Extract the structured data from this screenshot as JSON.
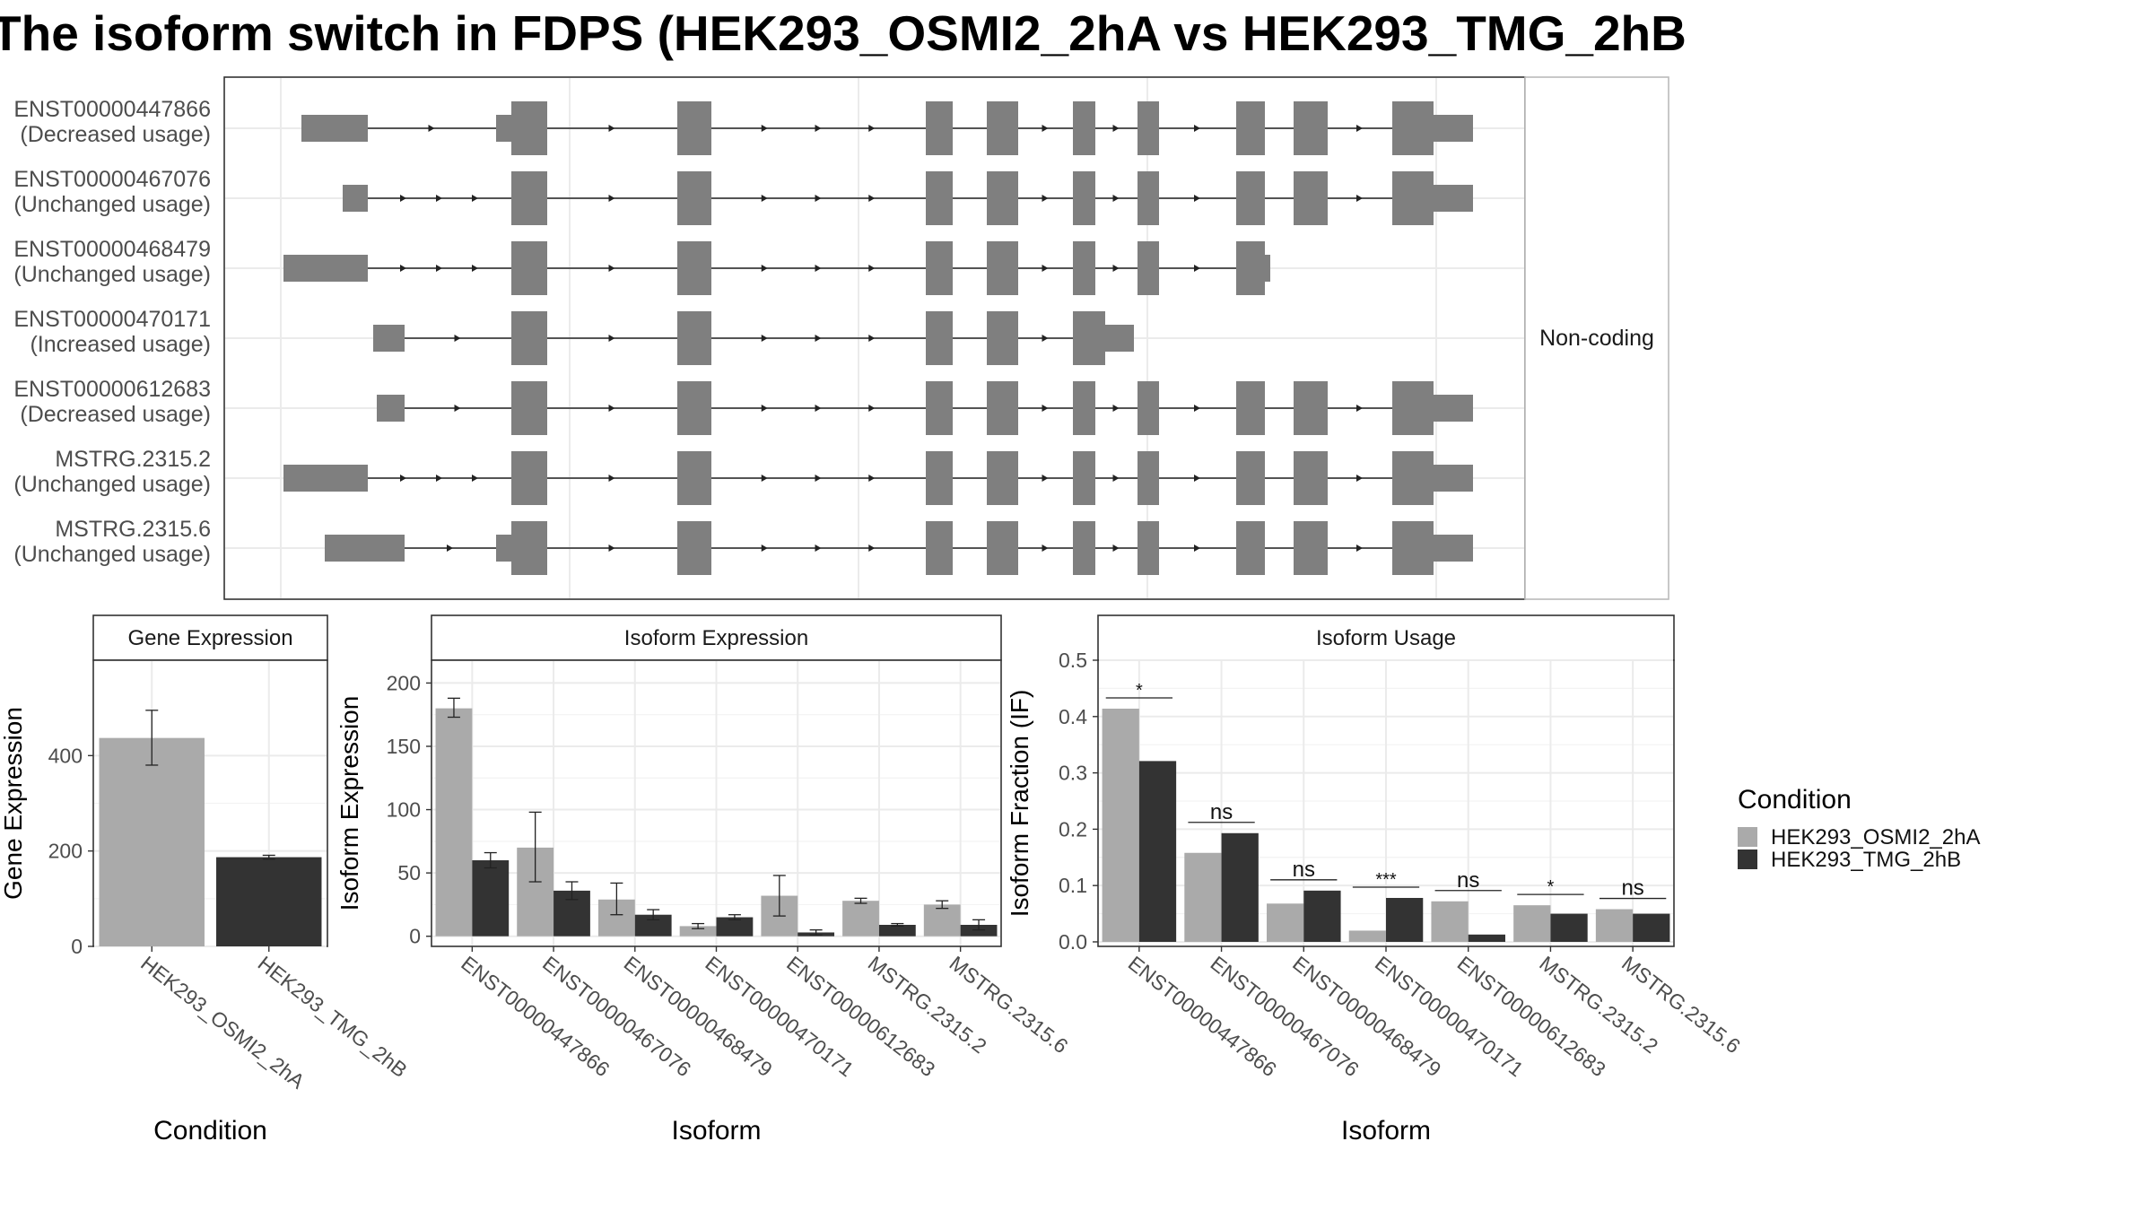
{
  "title": "The isoform switch in FDPS (HEK293_OSMI2_2hA vs HEK293_TMG_2hB",
  "colors": {
    "cond_a": "#aaaaaa",
    "cond_b": "#333333",
    "exon": "#7f7f7f",
    "grid": "#ebebeb"
  },
  "chart_data": [
    {
      "type": "gene-structure",
      "panel_label": "Non-coding",
      "transcripts": [
        {
          "id": "ENST00000447866",
          "usage": "(Decreased usage)"
        },
        {
          "id": "ENST00000467076",
          "usage": "(Unchanged usage)"
        },
        {
          "id": "ENST00000468479",
          "usage": "(Unchanged usage)"
        },
        {
          "id": "ENST00000470171",
          "usage": "(Increased usage)"
        },
        {
          "id": "ENST00000612683",
          "usage": "(Decreased usage)"
        },
        {
          "id": "MSTRG.2315.2",
          "usage": "(Unchanged usage)"
        },
        {
          "id": "MSTRG.2315.6",
          "usage": "(Unchanged usage)"
        }
      ]
    },
    {
      "type": "bar",
      "title": "Gene Expression",
      "xlabel": "Condition",
      "ylabel": "Gene Expression",
      "categories": [
        "HEK293_OSMI2_2hA",
        "HEK293_TMG_2hB"
      ],
      "values": [
        437,
        187
      ],
      "errors": [
        [
          380,
          495
        ],
        [
          183,
          191
        ]
      ],
      "yticks": [
        0,
        200,
        400
      ],
      "ylim": [
        0,
        600
      ]
    },
    {
      "type": "bar",
      "title": "Isoform Expression",
      "xlabel": "Isoform",
      "ylabel": "Isoform Expression",
      "categories": [
        "ENST00000447866",
        "ENST00000467076",
        "ENST00000468479",
        "ENST00000470171",
        "ENST00000612683",
        "MSTRG.2315.2",
        "MSTRG.2315.6"
      ],
      "series": [
        {
          "name": "HEK293_OSMI2_2hA",
          "values": [
            180,
            70,
            29,
            8,
            32,
            28,
            25
          ],
          "errors": [
            [
              173,
              188
            ],
            [
              43,
              98
            ],
            [
              17,
              42
            ],
            [
              6,
              10
            ],
            [
              16,
              48
            ],
            [
              26,
              30
            ],
            [
              22,
              28
            ]
          ]
        },
        {
          "name": "HEK293_TMG_2hB",
          "values": [
            60,
            36,
            17,
            15,
            3,
            9,
            9
          ],
          "errors": [
            [
              54,
              66
            ],
            [
              29,
              43
            ],
            [
              13,
              21
            ],
            [
              13,
              17
            ],
            [
              1,
              5
            ],
            [
              8,
              10
            ],
            [
              5,
              13
            ]
          ]
        }
      ],
      "yticks": [
        0,
        50,
        100,
        150,
        200
      ],
      "ylim": [
        -8,
        218
      ]
    },
    {
      "type": "bar",
      "title": "Isoform Usage",
      "xlabel": "Isoform",
      "ylabel": "Isoform Fraction (IF)",
      "categories": [
        "ENST00000447866",
        "ENST00000467076",
        "ENST00000468479",
        "ENST00000470171",
        "ENST00000612683",
        "MSTRG.2315.2",
        "MSTRG.2315.6"
      ],
      "series": [
        {
          "name": "HEK293_OSMI2_2hA",
          "values": [
            0.414,
            0.158,
            0.068,
            0.02,
            0.072,
            0.065,
            0.058
          ]
        },
        {
          "name": "HEK293_TMG_2hB",
          "values": [
            0.321,
            0.193,
            0.091,
            0.078,
            0.013,
            0.05,
            0.05
          ]
        }
      ],
      "significance": [
        "*",
        "ns",
        "ns",
        "***",
        "ns",
        "*",
        "ns"
      ],
      "yticks": [
        0.0,
        0.1,
        0.2,
        0.3,
        0.4,
        0.5
      ],
      "ylim": [
        -0.008,
        0.5
      ]
    }
  ],
  "legend": {
    "title": "Condition",
    "items": [
      "HEK293_OSMI2_2hA",
      "HEK293_TMG_2hB"
    ]
  }
}
